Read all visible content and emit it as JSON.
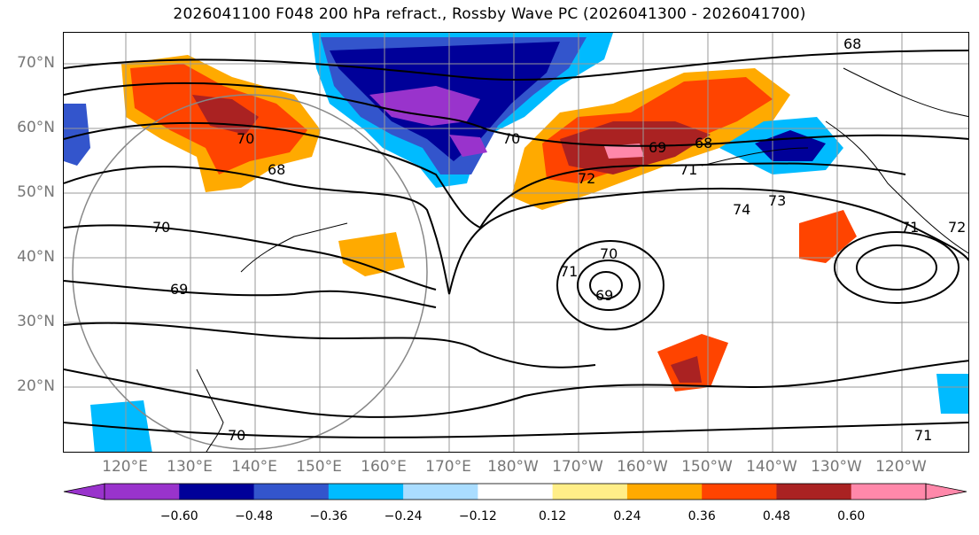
{
  "title": "2026041100 F048 200 hPa refract., Rossby Wave PC (2026041300 - 2026041700)",
  "lat_labels": [
    "70°N",
    "60°N",
    "50°N",
    "40°N",
    "30°N",
    "20°N"
  ],
  "lon_labels": [
    "120°E",
    "130°E",
    "140°E",
    "150°E",
    "160°E",
    "170°E",
    "180°W",
    "170°W",
    "160°W",
    "150°W",
    "140°W",
    "130°W",
    "120°W"
  ],
  "contour_labels": [
    {
      "text": "68"
    },
    {
      "text": "70"
    },
    {
      "text": "70"
    },
    {
      "text": "69"
    },
    {
      "text": "68"
    },
    {
      "text": "71"
    },
    {
      "text": "72"
    },
    {
      "text": "73"
    },
    {
      "text": "74"
    },
    {
      "text": "70"
    },
    {
      "text": "69"
    },
    {
      "text": "71"
    },
    {
      "text": "70"
    },
    {
      "text": "69"
    },
    {
      "text": "70"
    },
    {
      "text": "71"
    },
    {
      "text": "72"
    },
    {
      "text": "71"
    },
    {
      "text": "68"
    }
  ],
  "colorbar": {
    "levels": [
      -0.72,
      -0.6,
      -0.48,
      -0.36,
      -0.24,
      -0.12,
      0.12,
      0.24,
      0.36,
      0.48,
      0.6,
      0.72
    ],
    "colors": [
      "#9933cc",
      "#000099",
      "#3355cc",
      "#00bbff",
      "#aaddff",
      "#ffffff",
      "#ffee88",
      "#ffaa00",
      "#ff4400",
      "#aa2222",
      "#ff88aa"
    ],
    "tick_labels": [
      "−0.60",
      "−0.48",
      "−0.36",
      "−0.24",
      "−0.12",
      "0.12",
      "0.24",
      "0.36",
      "0.48",
      "0.60"
    ]
  }
}
